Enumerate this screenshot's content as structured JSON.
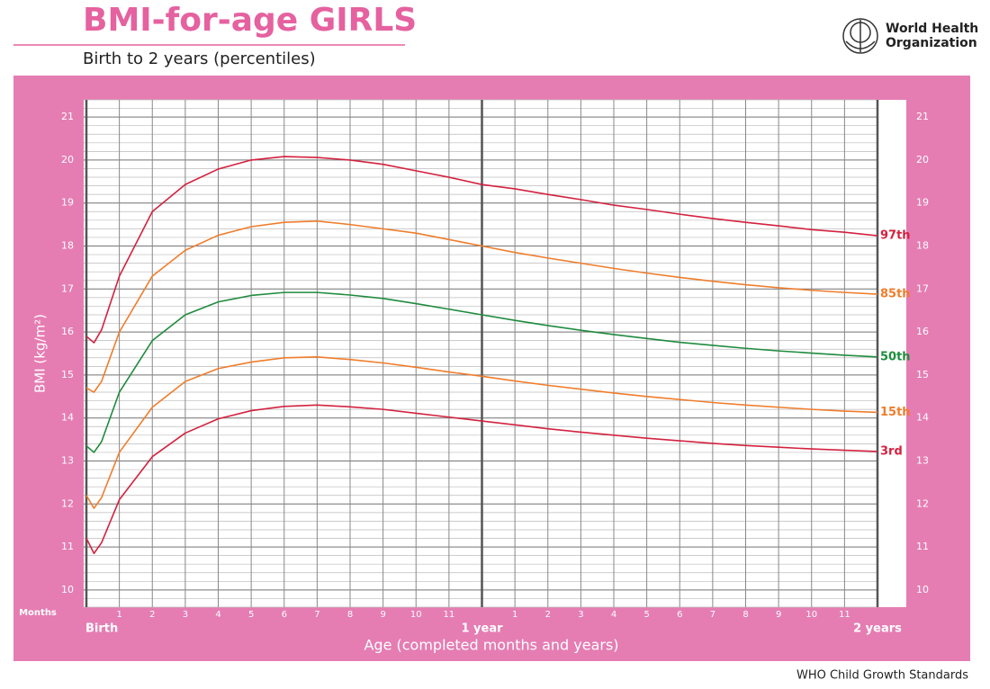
{
  "chart_data": {
    "type": "line",
    "title": "BMI-for-age GIRLS",
    "subtitle": "Birth to 2 years (percentiles)",
    "y_label": "BMI (kg/m²)",
    "x_label": "Age (completed months and years)",
    "x_unit_label": "Months",
    "org_name": [
      "World Health",
      "Organization"
    ],
    "footer": "WHO Child Growth Standards",
    "xlim": [
      0,
      24
    ],
    "ylim": [
      9.6,
      21.4
    ],
    "yticks": [
      10,
      11,
      12,
      13,
      14,
      15,
      16,
      17,
      18,
      19,
      20,
      21
    ],
    "minor_grid_step": 0.2,
    "grid": true,
    "xticks": [
      {
        "value": 0,
        "label": "Birth"
      },
      1,
      2,
      3,
      4,
      5,
      6,
      7,
      8,
      9,
      10,
      11,
      {
        "value": 12,
        "label": "1 year"
      },
      {
        "value": 13,
        "label": "1"
      },
      {
        "value": 14,
        "label": "2"
      },
      {
        "value": 15,
        "label": "3"
      },
      {
        "value": 16,
        "label": "4"
      },
      {
        "value": 17,
        "label": "5"
      },
      {
        "value": 18,
        "label": "6"
      },
      {
        "value": 19,
        "label": "7"
      },
      {
        "value": 20,
        "label": "8"
      },
      {
        "value": 21,
        "label": "9"
      },
      {
        "value": 22,
        "label": "10"
      },
      {
        "value": 23,
        "label": "11"
      },
      {
        "value": 24,
        "label": "2 years"
      }
    ],
    "x": [
      0,
      0.23,
      0.46,
      1,
      2,
      3,
      4,
      5,
      6,
      7,
      8,
      9,
      10,
      11,
      12,
      13,
      14,
      15,
      16,
      17,
      18,
      19,
      20,
      21,
      22,
      23,
      24
    ],
    "series": [
      {
        "name": "97th",
        "color": "#d3223f",
        "values": [
          15.9,
          15.75,
          16.05,
          17.3,
          18.8,
          19.43,
          19.79,
          20.0,
          20.08,
          20.06,
          20.0,
          19.9,
          19.75,
          19.6,
          19.43,
          19.33,
          19.2,
          19.08,
          18.95,
          18.85,
          18.74,
          18.64,
          18.55,
          18.47,
          18.38,
          18.32,
          18.24
        ]
      },
      {
        "name": "85th",
        "color": "#ef7d2c",
        "values": [
          14.7,
          14.6,
          14.85,
          16.0,
          17.3,
          17.9,
          18.25,
          18.45,
          18.55,
          18.58,
          18.5,
          18.4,
          18.3,
          18.15,
          18.0,
          17.85,
          17.72,
          17.6,
          17.48,
          17.37,
          17.27,
          17.18,
          17.1,
          17.03,
          16.97,
          16.92,
          16.88
        ]
      },
      {
        "name": "50th",
        "color": "#1f8b3e",
        "values": [
          13.35,
          13.2,
          13.45,
          14.6,
          15.8,
          16.4,
          16.7,
          16.85,
          16.92,
          16.92,
          16.86,
          16.78,
          16.66,
          16.53,
          16.4,
          16.27,
          16.15,
          16.04,
          15.94,
          15.85,
          15.76,
          15.69,
          15.62,
          15.56,
          15.51,
          15.46,
          15.42
        ]
      },
      {
        "name": "15th",
        "color": "#ef7d2c",
        "values": [
          12.2,
          11.9,
          12.15,
          13.2,
          14.25,
          14.85,
          15.15,
          15.3,
          15.4,
          15.42,
          15.36,
          15.28,
          15.18,
          15.07,
          14.97,
          14.86,
          14.76,
          14.67,
          14.58,
          14.5,
          14.43,
          14.36,
          14.3,
          14.25,
          14.2,
          14.16,
          14.13
        ]
      },
      {
        "name": "3rd",
        "color": "#d3223f",
        "values": [
          11.2,
          10.85,
          11.1,
          12.1,
          13.1,
          13.65,
          13.98,
          14.17,
          14.27,
          14.3,
          14.26,
          14.2,
          14.11,
          14.02,
          13.93,
          13.84,
          13.75,
          13.67,
          13.6,
          13.53,
          13.47,
          13.41,
          13.36,
          13.32,
          13.28,
          13.25,
          13.22
        ]
      }
    ]
  }
}
